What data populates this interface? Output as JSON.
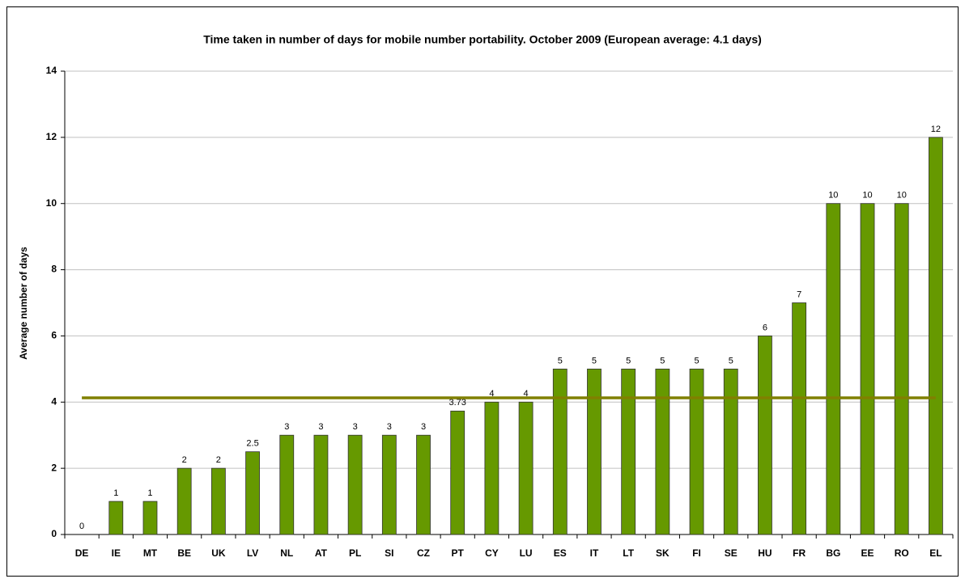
{
  "chart_data": {
    "type": "bar",
    "title": "Time taken in number of days for mobile number portability. October 2009 (European average: 4.1 days)",
    "y_label": "Average number of days",
    "categories": [
      "DE",
      "IE",
      "MT",
      "BE",
      "UK",
      "LV",
      "NL",
      "AT",
      "PL",
      "SI",
      "CZ",
      "PT",
      "CY",
      "LU",
      "ES",
      "IT",
      "LT",
      "SK",
      "FI",
      "SE",
      "HU",
      "FR",
      "BG",
      "EE",
      "RO",
      "EL"
    ],
    "values": [
      0,
      1,
      1,
      2,
      2,
      2.5,
      3,
      3,
      3,
      3,
      3,
      3.73,
      4,
      4,
      5,
      5,
      5,
      5,
      5,
      5,
      6,
      7,
      10,
      10,
      10,
      12
    ],
    "color": "#669900",
    "average": 4.13,
    "average_color": "#808000",
    "ylim": [
      0,
      14
    ],
    "yticks": [
      0,
      2,
      4,
      6,
      8,
      10,
      12,
      14
    ],
    "grid": true
  }
}
